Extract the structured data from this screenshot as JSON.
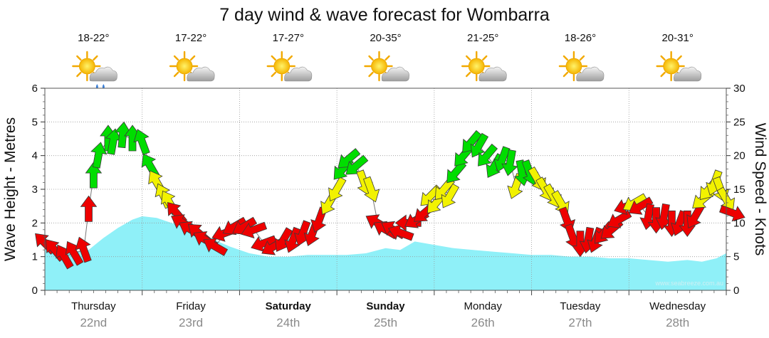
{
  "title": "7 day wind & wave forecast for Wombarra",
  "watermark": "www.seabreeze.com.au",
  "colors": {
    "wave_fill": "#8ff0f8",
    "light_wind": "#00dd00",
    "moderate_wind": "#f2f200",
    "strong_wind": "#ee0000",
    "grid": "#999999"
  },
  "days": [
    {
      "name": "Thursday",
      "date": "22nd",
      "bold": false,
      "temp": "18-22°",
      "icon": "sun-cloud-rain-icon"
    },
    {
      "name": "Friday",
      "date": "23rd",
      "bold": false,
      "temp": "17-22°",
      "icon": "sun-cloud-icon"
    },
    {
      "name": "Saturday",
      "date": "24th",
      "bold": true,
      "temp": "17-27°",
      "icon": "sun-cloud-icon"
    },
    {
      "name": "Sunday",
      "date": "25th",
      "bold": true,
      "temp": "20-35°",
      "icon": "sun-cloud-icon"
    },
    {
      "name": "Monday",
      "date": "26th",
      "bold": false,
      "temp": "21-25°",
      "icon": "sun-cloud-icon"
    },
    {
      "name": "Tuesday",
      "date": "27th",
      "bold": false,
      "temp": "18-26°",
      "icon": "sun-cloud-icon"
    },
    {
      "name": "Wednesday",
      "date": "28th",
      "bold": false,
      "temp": "20-31°",
      "icon": "sun-cloud-icon"
    }
  ],
  "chart_data": {
    "type": "area",
    "left_axis": {
      "label": "Wave Height - Metres",
      "range": [
        0,
        6
      ],
      "ticks": [
        "0",
        "1",
        "2",
        "3",
        "4",
        "5",
        "6"
      ]
    },
    "right_axis": {
      "label": "Wind Speed - Knots",
      "range": [
        0,
        30
      ],
      "ticks": [
        "0",
        "5",
        "10",
        "15",
        "20",
        "25",
        "30"
      ]
    },
    "x_days": 7,
    "wave_height": {
      "name": "Wave Height",
      "x": [
        0,
        0.3,
        0.45,
        0.6,
        0.75,
        0.9,
        1.0,
        1.15,
        1.3,
        1.5,
        1.7,
        1.9,
        2.1,
        2.3,
        2.5,
        2.7,
        2.9,
        3.1,
        3.3,
        3.5,
        3.65,
        3.8,
        3.9,
        4.0,
        4.2,
        4.4,
        4.6,
        4.8,
        5.0,
        5.2,
        5.4,
        5.6,
        5.8,
        6.0,
        6.2,
        6.4,
        6.6,
        6.75,
        6.9,
        7.0
      ],
      "values": [
        1.2,
        1.15,
        1.2,
        1.55,
        1.85,
        2.1,
        2.2,
        2.15,
        2.0,
        1.8,
        1.55,
        1.3,
        1.1,
        1.0,
        1.0,
        1.05,
        1.05,
        1.05,
        1.1,
        1.25,
        1.2,
        1.45,
        1.4,
        1.35,
        1.25,
        1.2,
        1.15,
        1.1,
        1.05,
        1.05,
        1.0,
        1.0,
        0.95,
        0.95,
        0.9,
        0.85,
        0.9,
        0.85,
        0.95,
        1.1
      ]
    },
    "wind": {
      "name": "Wind Speed",
      "points": [
        {
          "x": 0.0,
          "v": 7,
          "dir": 315
        },
        {
          "x": 0.1,
          "v": 6,
          "dir": 320
        },
        {
          "x": 0.2,
          "v": 5,
          "dir": 330
        },
        {
          "x": 0.3,
          "v": 5.5,
          "dir": 330
        },
        {
          "x": 0.4,
          "v": 6,
          "dir": 340
        },
        {
          "x": 0.45,
          "v": 12,
          "dir": 0
        },
        {
          "x": 0.5,
          "v": 17,
          "dir": 0
        },
        {
          "x": 0.55,
          "v": 20,
          "dir": 10
        },
        {
          "x": 0.65,
          "v": 22.5,
          "dir": 0
        },
        {
          "x": 0.7,
          "v": 22,
          "dir": 10
        },
        {
          "x": 0.8,
          "v": 23,
          "dir": 5
        },
        {
          "x": 0.9,
          "v": 22.5,
          "dir": 0
        },
        {
          "x": 1.0,
          "v": 22,
          "dir": 340
        },
        {
          "x": 1.08,
          "v": 18.5,
          "dir": 330
        },
        {
          "x": 1.15,
          "v": 16,
          "dir": 330
        },
        {
          "x": 1.22,
          "v": 14,
          "dir": 335
        },
        {
          "x": 1.28,
          "v": 13,
          "dir": 330
        },
        {
          "x": 1.35,
          "v": 11.5,
          "dir": 320
        },
        {
          "x": 1.42,
          "v": 10,
          "dir": 300
        },
        {
          "x": 1.5,
          "v": 9,
          "dir": 300
        },
        {
          "x": 1.58,
          "v": 8.5,
          "dir": 310
        },
        {
          "x": 1.65,
          "v": 7.5,
          "dir": 300
        },
        {
          "x": 1.75,
          "v": 6.5,
          "dir": 300
        },
        {
          "x": 1.85,
          "v": 8.5,
          "dir": 250
        },
        {
          "x": 1.95,
          "v": 9.5,
          "dir": 240
        },
        {
          "x": 2.05,
          "v": 9.5,
          "dir": 240
        },
        {
          "x": 2.15,
          "v": 9,
          "dir": 250
        },
        {
          "x": 2.25,
          "v": 7,
          "dir": 250
        },
        {
          "x": 2.35,
          "v": 6.5,
          "dir": 240
        },
        {
          "x": 2.45,
          "v": 7.5,
          "dir": 210
        },
        {
          "x": 2.55,
          "v": 7.5,
          "dir": 200
        },
        {
          "x": 2.65,
          "v": 8.5,
          "dir": 200
        },
        {
          "x": 2.75,
          "v": 8.5,
          "dir": 200
        },
        {
          "x": 2.82,
          "v": 10.5,
          "dir": 200
        },
        {
          "x": 2.92,
          "v": 13,
          "dir": 210
        },
        {
          "x": 3.0,
          "v": 15,
          "dir": 210
        },
        {
          "x": 3.06,
          "v": 18,
          "dir": 220
        },
        {
          "x": 3.12,
          "v": 19.5,
          "dir": 230
        },
        {
          "x": 3.2,
          "v": 18.5,
          "dir": 230
        },
        {
          "x": 3.28,
          "v": 16,
          "dir": 160
        },
        {
          "x": 3.35,
          "v": 15,
          "dir": 160
        },
        {
          "x": 3.42,
          "v": 10,
          "dir": 300
        },
        {
          "x": 3.5,
          "v": 9,
          "dir": 300
        },
        {
          "x": 3.58,
          "v": 9,
          "dir": 300
        },
        {
          "x": 3.66,
          "v": 8.5,
          "dir": 290
        },
        {
          "x": 3.74,
          "v": 10,
          "dir": 270
        },
        {
          "x": 3.82,
          "v": 10.5,
          "dir": 240
        },
        {
          "x": 3.9,
          "v": 11.5,
          "dir": 230
        },
        {
          "x": 3.96,
          "v": 14,
          "dir": 225
        },
        {
          "x": 4.02,
          "v": 13,
          "dir": 220
        },
        {
          "x": 4.1,
          "v": 15,
          "dir": 220
        },
        {
          "x": 4.16,
          "v": 14,
          "dir": 210
        },
        {
          "x": 4.22,
          "v": 17.5,
          "dir": 220
        },
        {
          "x": 4.3,
          "v": 20,
          "dir": 220
        },
        {
          "x": 4.38,
          "v": 22,
          "dir": 220
        },
        {
          "x": 4.46,
          "v": 21.5,
          "dir": 210
        },
        {
          "x": 4.54,
          "v": 20,
          "dir": 220
        },
        {
          "x": 4.62,
          "v": 18.5,
          "dir": 210
        },
        {
          "x": 4.7,
          "v": 19.5,
          "dir": 200
        },
        {
          "x": 4.78,
          "v": 19,
          "dir": 190
        },
        {
          "x": 4.84,
          "v": 15.5,
          "dir": 200
        },
        {
          "x": 4.9,
          "v": 17.5,
          "dir": 170
        },
        {
          "x": 4.98,
          "v": 17.5,
          "dir": 160
        },
        {
          "x": 5.06,
          "v": 16.5,
          "dir": 150
        },
        {
          "x": 5.14,
          "v": 15,
          "dir": 150
        },
        {
          "x": 5.22,
          "v": 14,
          "dir": 150
        },
        {
          "x": 5.3,
          "v": 13,
          "dir": 150
        },
        {
          "x": 5.36,
          "v": 10.5,
          "dir": 160
        },
        {
          "x": 5.42,
          "v": 8,
          "dir": 160
        },
        {
          "x": 5.5,
          "v": 7,
          "dir": 180
        },
        {
          "x": 5.58,
          "v": 7.5,
          "dir": 190
        },
        {
          "x": 5.66,
          "v": 7.5,
          "dir": 200
        },
        {
          "x": 5.74,
          "v": 8.5,
          "dir": 220
        },
        {
          "x": 5.82,
          "v": 9,
          "dir": 230
        },
        {
          "x": 5.9,
          "v": 10.5,
          "dir": 240
        },
        {
          "x": 5.98,
          "v": 12.5,
          "dir": 250
        },
        {
          "x": 6.06,
          "v": 13,
          "dir": 240
        },
        {
          "x": 6.12,
          "v": 12.5,
          "dir": 240
        },
        {
          "x": 6.2,
          "v": 11,
          "dir": 190
        },
        {
          "x": 6.28,
          "v": 10.5,
          "dir": 180
        },
        {
          "x": 6.36,
          "v": 11,
          "dir": 190
        },
        {
          "x": 6.44,
          "v": 10,
          "dir": 180
        },
        {
          "x": 6.52,
          "v": 10,
          "dir": 200
        },
        {
          "x": 6.6,
          "v": 10,
          "dir": 180
        },
        {
          "x": 6.68,
          "v": 11,
          "dir": 210
        },
        {
          "x": 6.76,
          "v": 13.5,
          "dir": 230
        },
        {
          "x": 6.82,
          "v": 15,
          "dir": 220
        },
        {
          "x": 6.88,
          "v": 16,
          "dir": 200
        },
        {
          "x": 6.94,
          "v": 15,
          "dir": 160
        },
        {
          "x": 7.0,
          "v": 13.5,
          "dir": 150
        },
        {
          "x": 7.06,
          "v": 11.5,
          "dir": 110
        }
      ]
    }
  }
}
